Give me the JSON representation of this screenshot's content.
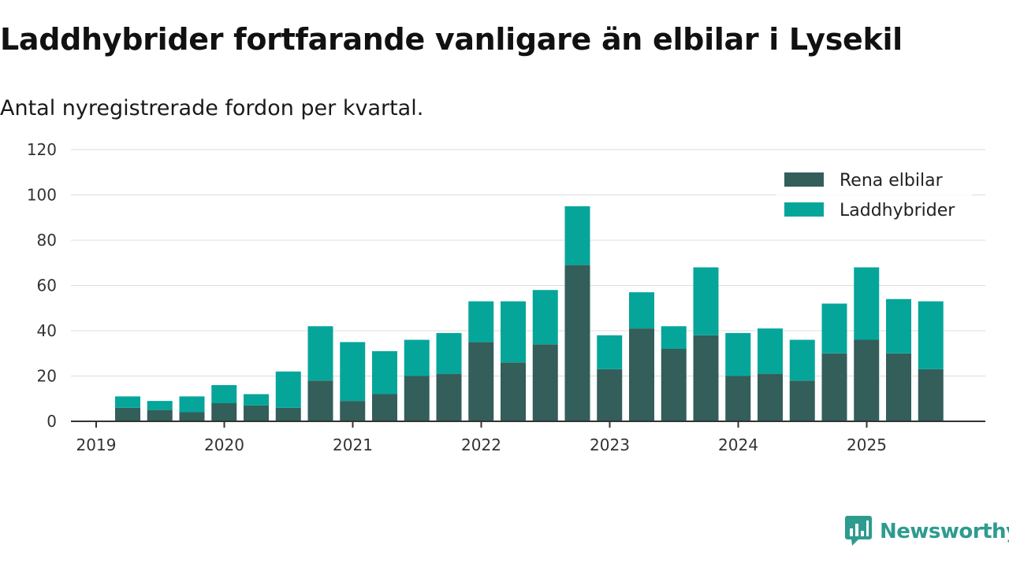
{
  "header": {
    "title": "Laddhybrider fortfarande vanligare än elbilar i Lysekil",
    "subtitle": "Antal nyregistrerade fordon per kvartal."
  },
  "brand": {
    "name": "Newsworthy"
  },
  "colors": {
    "elbilar": "#335e5a",
    "laddhybrider": "#06a59a",
    "grid": "#dddddd",
    "axis": "#333333",
    "brand": "#2e9b8f"
  },
  "chart_data": {
    "type": "bar",
    "stacked": true,
    "title": "Laddhybrider fortfarande vanligare än elbilar i Lysekil",
    "subtitle": "Antal nyregistrerade fordon per kvartal.",
    "xlabel": "",
    "ylabel": "",
    "ylim": [
      0,
      120
    ],
    "yticks": [
      "0",
      "20",
      "40",
      "60",
      "80",
      "100",
      "120"
    ],
    "xticks": [
      "2019",
      "2020",
      "2021",
      "2022",
      "2023",
      "2024",
      "2025"
    ],
    "legend_position": "top-right",
    "categories": [
      "2019 Q2",
      "2019 Q3",
      "2019 Q4",
      "2020 Q1",
      "2020 Q2",
      "2020 Q3",
      "2020 Q4",
      "2021 Q1",
      "2021 Q2",
      "2021 Q3",
      "2021 Q4",
      "2022 Q1",
      "2022 Q2",
      "2022 Q3",
      "2022 Q4",
      "2023 Q1",
      "2023 Q2",
      "2023 Q3",
      "2023 Q4",
      "2024 Q1",
      "2024 Q2",
      "2024 Q3",
      "2024 Q4",
      "2025 Q1",
      "2025 Q2",
      "2025 Q3"
    ],
    "series": [
      {
        "name": "Rena elbilar",
        "values": [
          6,
          5,
          4,
          8,
          7,
          6,
          18,
          9,
          12,
          20,
          21,
          35,
          26,
          34,
          69,
          23,
          41,
          32,
          38,
          20,
          21,
          18,
          30,
          36,
          30,
          23
        ]
      },
      {
        "name": "Laddhybrider",
        "values": [
          5,
          4,
          7,
          8,
          5,
          16,
          24,
          26,
          19,
          16,
          18,
          18,
          27,
          24,
          26,
          15,
          16,
          10,
          30,
          19,
          20,
          18,
          22,
          32,
          24,
          30
        ]
      }
    ]
  }
}
